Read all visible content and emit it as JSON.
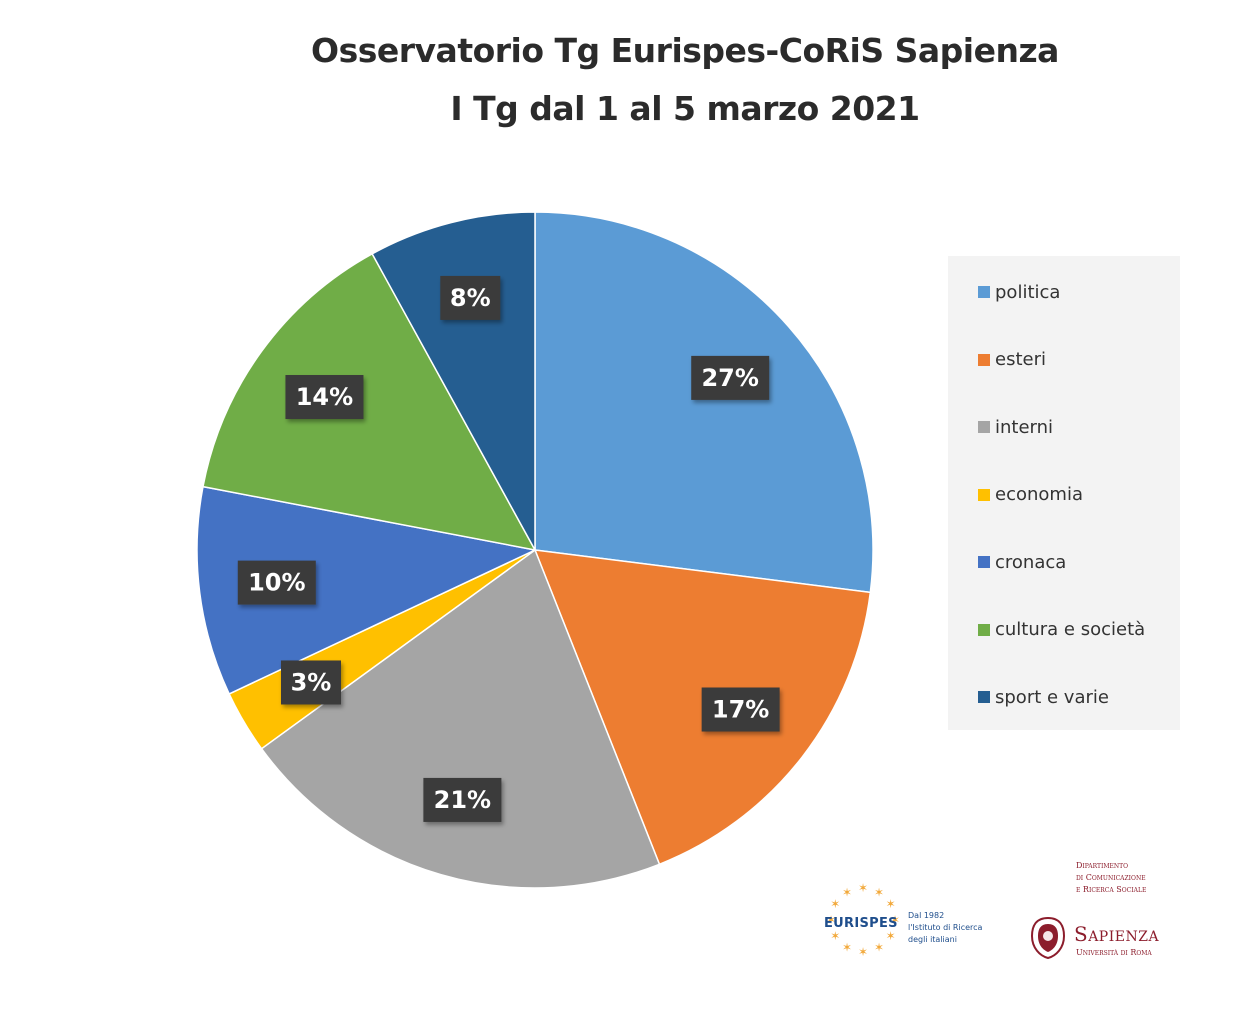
{
  "chart_data": {
    "type": "pie",
    "title": [
      "Osservatorio Tg Eurispes-CoRiS Sapienza",
      "I Tg dal 1 al 5 marzo 2021"
    ],
    "legend_position": "right",
    "slices": [
      {
        "name": "politica",
        "value": 27,
        "label": "27%",
        "color": "#5b9bd5"
      },
      {
        "name": "esteri",
        "value": 17,
        "label": "17%",
        "color": "#ed7d31"
      },
      {
        "name": "interni",
        "value": 21,
        "label": "21%",
        "color": "#a5a5a5"
      },
      {
        "name": "economia",
        "value": 3,
        "label": "3%",
        "color": "#ffc000"
      },
      {
        "name": "cronaca",
        "value": 10,
        "label": "10%",
        "color": "#4472c4"
      },
      {
        "name": "cultura e società",
        "value": 14,
        "label": "14%",
        "color": "#70ad47"
      },
      {
        "name": "sport e varie",
        "value": 8,
        "label": "8%",
        "color": "#255e91"
      }
    ]
  },
  "logos": {
    "eurispes": {
      "name": "EURISPES",
      "tagline": [
        "Dal 1982",
        "l'Istituto di Ricerca",
        "degli italiani"
      ]
    },
    "sapienza": {
      "department": [
        "Dipartimento",
        "di Comunicazione",
        "e Ricerca Sociale"
      ],
      "name": "Sapienza",
      "subtitle": "Università di Roma"
    }
  }
}
